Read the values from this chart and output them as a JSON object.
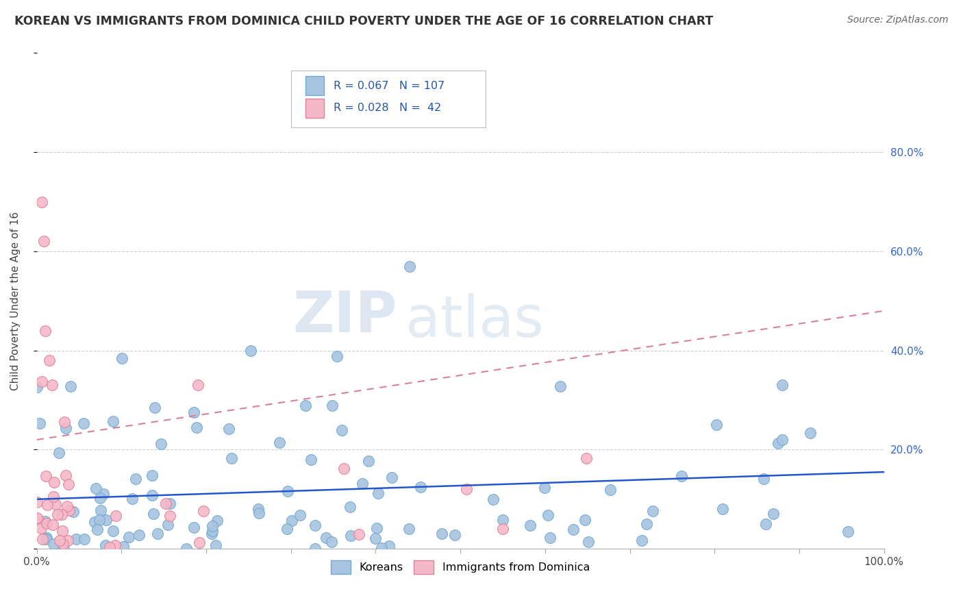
{
  "title": "KOREAN VS IMMIGRANTS FROM DOMINICA CHILD POVERTY UNDER THE AGE OF 16 CORRELATION CHART",
  "source": "Source: ZipAtlas.com",
  "ylabel": "Child Poverty Under the Age of 16",
  "xlim": [
    0,
    1
  ],
  "ylim": [
    0,
    1
  ],
  "ytick_labels_right": [
    "20.0%",
    "40.0%",
    "60.0%",
    "80.0%"
  ],
  "ytick_vals_right": [
    0.2,
    0.4,
    0.6,
    0.8
  ],
  "korean_color": "#a8c4e0",
  "korean_edge": "#6fa8d0",
  "dominica_color": "#f4b8c8",
  "dominica_edge": "#e08098",
  "trend_korean_color": "#2255cc",
  "trend_dominica_color": "#d88098",
  "legend_label_korean": "Koreans",
  "legend_label_dominica": "Immigrants from Dominica",
  "watermark_zip": "ZIP",
  "watermark_atlas": "atlas",
  "background_color": "#ffffff",
  "grid_color": "#cccccc",
  "title_color": "#333333",
  "source_color": "#666666",
  "legend_text_color": "#2255aa",
  "korean_R": 0.067,
  "dominica_R": 0.028,
  "korean_N": 107,
  "dominica_N": 42,
  "trend_k_y0": 0.1,
  "trend_k_y1": 0.155,
  "trend_d_y0": 0.22,
  "trend_d_y1": 0.48
}
